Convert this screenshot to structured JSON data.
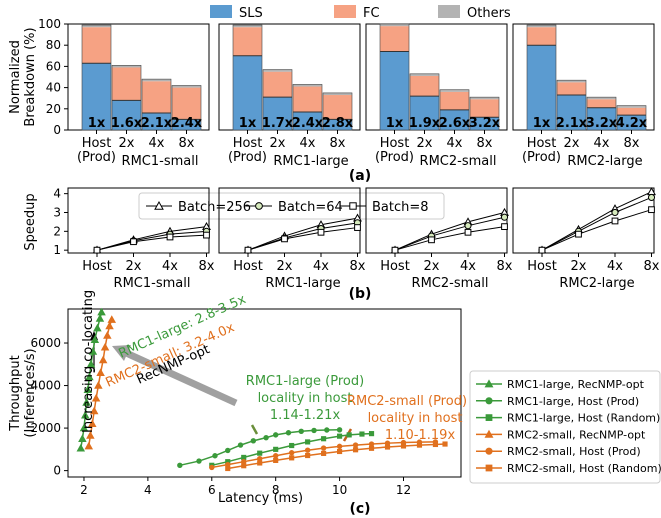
{
  "figure": {
    "panel_a_caption": "(a)",
    "panel_b_caption": "(b)",
    "panel_c_caption": "(c)"
  },
  "colors": {
    "sls": "#5b9bd0",
    "fc": "#f6a283",
    "others": "#b3b3b3",
    "rmc1": "#3b9a3b",
    "rmc2": "#e0701e",
    "arrow": "#a0a0a0"
  },
  "chart_data": [
    {
      "type": "bar",
      "title": "",
      "ylabel": "Normalized Breakdown (%)",
      "ylabel_lines": [
        "Normalized",
        "Breakdown (%)"
      ],
      "ylim": [
        0,
        100
      ],
      "yticks": [
        "0",
        "20",
        "40",
        "60",
        "80",
        "100"
      ],
      "stacked": true,
      "legend": [
        "SLS",
        "FC",
        "Others"
      ],
      "legend_position": "top",
      "groups": [
        {
          "name": "RMC1-small",
          "categories": [
            "Host\n(Prod)",
            "2x",
            "4x",
            "8x"
          ],
          "SLS": [
            63,
            28,
            16,
            10
          ],
          "FC": [
            34,
            31,
            30,
            30
          ],
          "Others": [
            2,
            2,
            2,
            2
          ],
          "labels": [
            "1x",
            "1.6x",
            "2.1x",
            "2.4x"
          ]
        },
        {
          "name": "RMC1-large",
          "categories": [
            "Host\n(Prod)",
            "2x",
            "4x",
            "8x"
          ],
          "SLS": [
            70,
            31,
            17,
            10
          ],
          "FC": [
            27,
            24,
            24,
            23
          ],
          "Others": [
            2,
            2,
            2,
            2
          ],
          "labels": [
            "1x",
            "1.7x",
            "2.4x",
            "2.8x"
          ]
        },
        {
          "name": "RMC2-small",
          "categories": [
            "Host\n(Prod)",
            "2x",
            "4x",
            "8x"
          ],
          "SLS": [
            74,
            32,
            19,
            12
          ],
          "FC": [
            24,
            19,
            17,
            17
          ],
          "Others": [
            2,
            2,
            2,
            2
          ],
          "labels": [
            "1x",
            "1.9x",
            "2.6x",
            "3.2x"
          ]
        },
        {
          "name": "RMC2-large",
          "categories": [
            "Host\n(Prod)",
            "2x",
            "4x",
            "8x"
          ],
          "SLS": [
            80,
            33,
            21,
            14
          ],
          "FC": [
            17,
            12,
            8,
            7
          ],
          "Others": [
            2,
            2,
            2,
            2
          ],
          "labels": [
            "1x",
            "2.1x",
            "3.2x",
            "4.2x"
          ]
        }
      ]
    },
    {
      "type": "line",
      "title": "",
      "ylabel": "Speedup",
      "ylim": [
        1,
        4
      ],
      "yticks": [
        "1",
        "2",
        "3",
        "4"
      ],
      "legend_position": "top-left",
      "groups": [
        {
          "name": "RMC1-small",
          "categories": [
            "Host",
            "2x",
            "4x",
            "8x"
          ],
          "series": [
            {
              "name": "Batch=256",
              "marker": "triangle",
              "values": [
                1.0,
                1.55,
                2.0,
                2.25
              ]
            },
            {
              "name": "Batch=64",
              "marker": "circle",
              "values": [
                1.0,
                1.5,
                1.85,
                2.0
              ]
            },
            {
              "name": "Batch=8",
              "marker": "square",
              "values": [
                1.0,
                1.45,
                1.7,
                1.8
              ]
            }
          ]
        },
        {
          "name": "RMC1-large",
          "categories": [
            "Host",
            "2x",
            "4x",
            "8x"
          ],
          "series": [
            {
              "name": "Batch=256",
              "marker": "triangle",
              "values": [
                1.0,
                1.75,
                2.35,
                2.7
              ]
            },
            {
              "name": "Batch=64",
              "marker": "circle",
              "values": [
                1.0,
                1.65,
                2.15,
                2.45
              ]
            },
            {
              "name": "Batch=8",
              "marker": "square",
              "values": [
                1.0,
                1.6,
                1.95,
                2.2
              ]
            }
          ]
        },
        {
          "name": "RMC2-small",
          "categories": [
            "Host",
            "2x",
            "4x",
            "8x"
          ],
          "series": [
            {
              "name": "Batch=256",
              "marker": "triangle",
              "values": [
                1.0,
                1.85,
                2.5,
                3.0
              ]
            },
            {
              "name": "Batch=64",
              "marker": "circle",
              "values": [
                1.0,
                1.75,
                2.3,
                2.75
              ]
            },
            {
              "name": "Batch=8",
              "marker": "square",
              "values": [
                1.0,
                1.55,
                1.95,
                2.25
              ]
            }
          ]
        },
        {
          "name": "RMC2-large",
          "categories": [
            "Host",
            "2x",
            "4x",
            "8x"
          ],
          "series": [
            {
              "name": "Batch=256",
              "marker": "triangle",
              "values": [
                1.0,
                2.1,
                3.2,
                4.1
              ]
            },
            {
              "name": "Batch=64",
              "marker": "circle",
              "values": [
                1.0,
                2.0,
                3.0,
                3.8
              ]
            },
            {
              "name": "Batch=8",
              "marker": "square",
              "values": [
                1.0,
                1.85,
                2.55,
                3.15
              ]
            }
          ]
        }
      ]
    },
    {
      "type": "scatter",
      "title": "",
      "xlabel": "Latency (ms)",
      "ylabel": "Throughput (Inferences/s)",
      "ylabel_lines": [
        "Throughput",
        "(Inferences/s)"
      ],
      "xlim": [
        1.5,
        13.8
      ],
      "ylim": [
        -300,
        7600
      ],
      "xticks": [
        "2",
        "4",
        "6",
        "8",
        "10",
        "12"
      ],
      "yticks": [
        "0",
        "2000",
        "4000",
        "6000"
      ],
      "legend_position": "right",
      "series": [
        {
          "name": "RMC1-large, RecNMP-opt",
          "color": "rmc1",
          "marker": "triangle",
          "points": [
            [
              1.9,
              1050
            ],
            [
              1.95,
              1500
            ],
            [
              2.0,
              2000
            ],
            [
              2.04,
              2600
            ],
            [
              2.08,
              3200
            ],
            [
              2.12,
              3800
            ],
            [
              2.17,
              4400
            ],
            [
              2.22,
              5000
            ],
            [
              2.28,
              5600
            ],
            [
              2.34,
              6150
            ],
            [
              2.42,
              6700
            ],
            [
              2.5,
              7150
            ],
            [
              2.55,
              7450
            ]
          ]
        },
        {
          "name": "RMC1-large, Host (Prod)",
          "color": "rmc1",
          "marker": "circle",
          "points": [
            [
              5.0,
              250
            ],
            [
              5.6,
              450
            ],
            [
              6.1,
              700
            ],
            [
              6.5,
              950
            ],
            [
              6.9,
              1200
            ],
            [
              7.3,
              1400
            ],
            [
              7.7,
              1550
            ],
            [
              8.0,
              1680
            ],
            [
              8.4,
              1780
            ],
            [
              8.8,
              1850
            ],
            [
              9.2,
              1890
            ],
            [
              9.6,
              1910
            ],
            [
              10.0,
              1920
            ]
          ]
        },
        {
          "name": "RMC1-large, Host (Random)",
          "color": "rmc1",
          "marker": "square",
          "points": [
            [
              6.0,
              250
            ],
            [
              6.5,
              420
            ],
            [
              7.0,
              620
            ],
            [
              7.5,
              820
            ],
            [
              8.0,
              1000
            ],
            [
              8.5,
              1180
            ],
            [
              9.0,
              1350
            ],
            [
              9.5,
              1500
            ],
            [
              10.0,
              1620
            ],
            [
              10.3,
              1680
            ],
            [
              10.7,
              1720
            ],
            [
              11.0,
              1740
            ]
          ]
        },
        {
          "name": "RMC2-small, RecNMP-opt",
          "color": "rmc2",
          "marker": "triangle",
          "points": [
            [
              2.15,
              1150
            ],
            [
              2.2,
              1650
            ],
            [
              2.26,
              2200
            ],
            [
              2.32,
              2800
            ],
            [
              2.38,
              3400
            ],
            [
              2.45,
              4000
            ],
            [
              2.52,
              4600
            ],
            [
              2.6,
              5200
            ],
            [
              2.66,
              5800
            ],
            [
              2.73,
              6350
            ],
            [
              2.8,
              6800
            ],
            [
              2.87,
              7100
            ]
          ]
        },
        {
          "name": "RMC2-small, Host (Prod)",
          "color": "rmc2",
          "marker": "circle",
          "points": [
            [
              6.0,
              150
            ],
            [
              6.5,
              280
            ],
            [
              7.0,
              420
            ],
            [
              7.5,
              560
            ],
            [
              8.0,
              700
            ],
            [
              8.5,
              840
            ],
            [
              9.0,
              960
            ],
            [
              9.5,
              1060
            ],
            [
              10.0,
              1140
            ],
            [
              10.5,
              1200
            ],
            [
              11.0,
              1250
            ],
            [
              11.5,
              1290
            ],
            [
              12.0,
              1320
            ],
            [
              12.5,
              1340
            ],
            [
              13.0,
              1350
            ]
          ]
        },
        {
          "name": "RMC2-small, Host (Random)",
          "color": "rmc2",
          "marker": "square",
          "points": [
            [
              6.5,
              100
            ],
            [
              7.0,
              230
            ],
            [
              7.5,
              360
            ],
            [
              8.0,
              480
            ],
            [
              8.5,
              600
            ],
            [
              9.0,
              710
            ],
            [
              9.5,
              810
            ],
            [
              10.0,
              900
            ],
            [
              10.5,
              980
            ],
            [
              11.0,
              1050
            ],
            [
              11.5,
              1110
            ],
            [
              12.0,
              1160
            ],
            [
              12.5,
              1200
            ],
            [
              13.0,
              1230
            ],
            [
              13.3,
              1250
            ]
          ]
        }
      ],
      "annotations": {
        "increasing": "Increasing co-locating",
        "recnmp_opt": "RecNMP-opt",
        "rmc1_speedup": "RMC1-large: 2.8-3.5x",
        "rmc2_speedup": "RMC2-small: 3.2-4.0x",
        "rmc1_prod": [
          "RMC1-large (Prod)",
          "locality in host",
          "1.14-1.21x"
        ],
        "rmc2_prod": [
          "RMC2-small (Prod)",
          "locality in host",
          "1.10-1.19x"
        ]
      }
    }
  ]
}
